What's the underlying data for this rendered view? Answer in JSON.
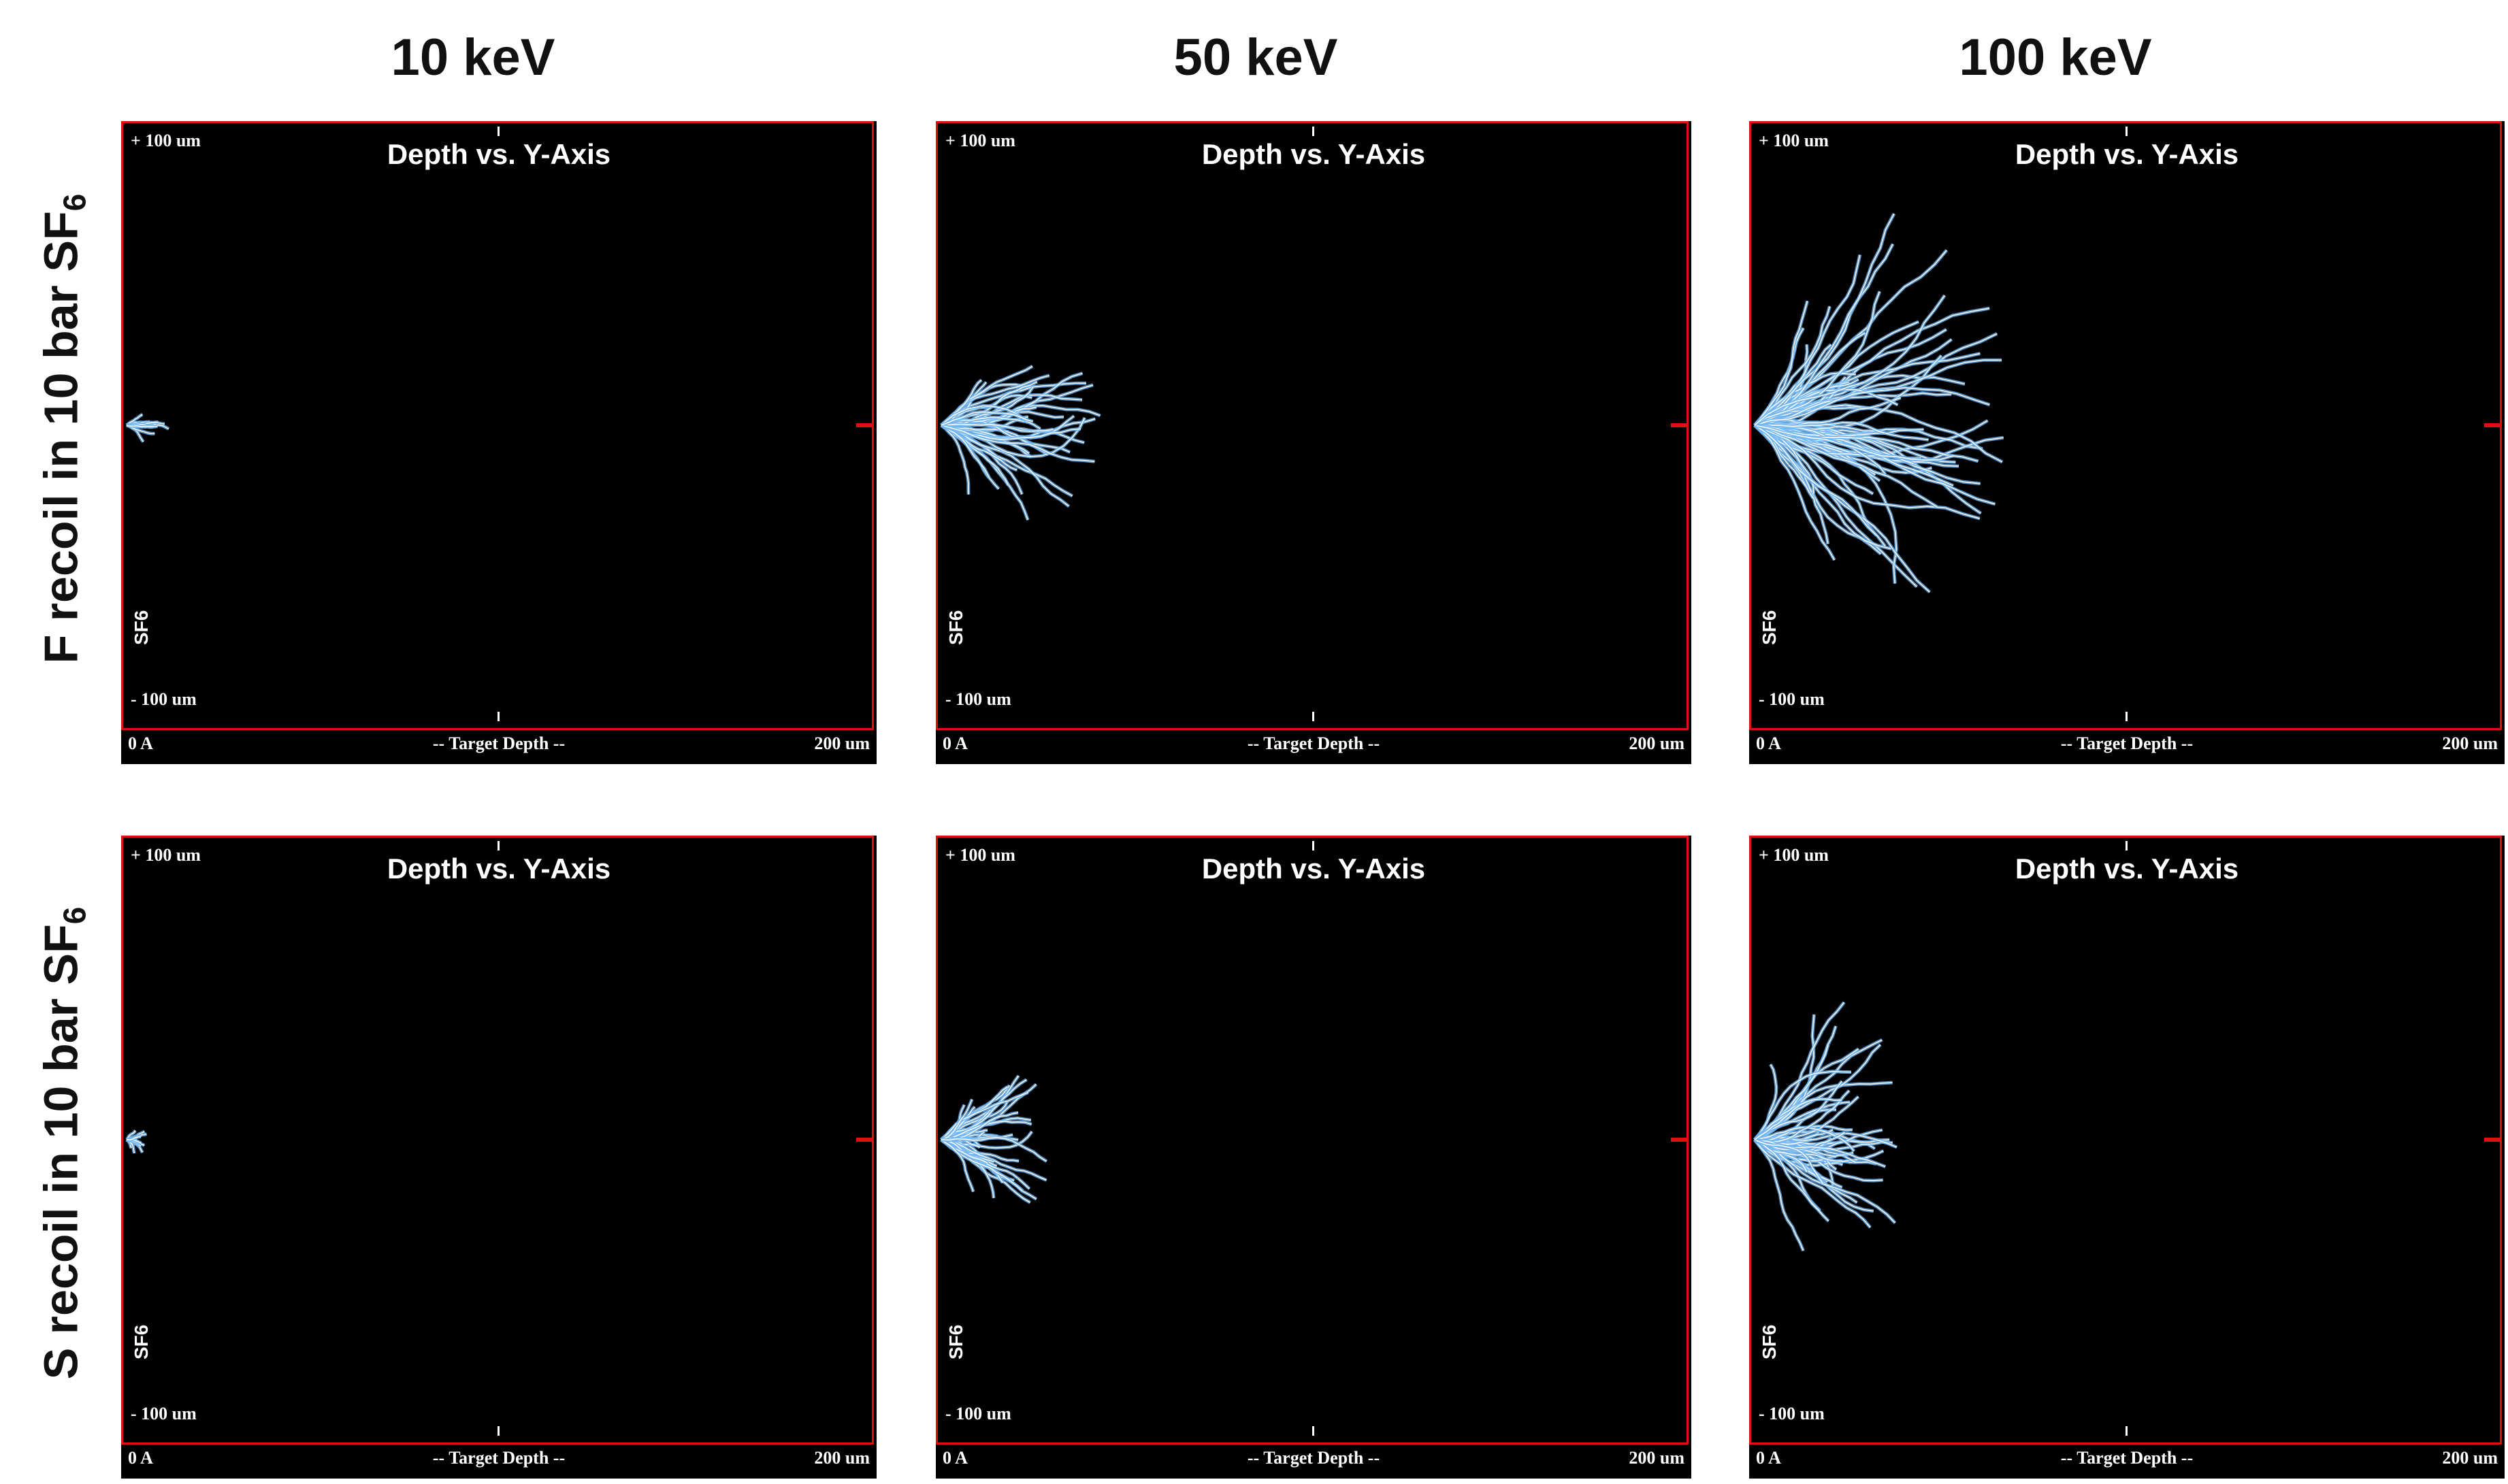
{
  "column_headers": [
    "10 keV",
    "50 keV",
    "100 keV"
  ],
  "row_labels": [
    {
      "text": "F recoil in 10 bar SF",
      "sub": "6"
    },
    {
      "text": "S recoil in 10 bar SF",
      "sub": "6"
    }
  ],
  "panel": {
    "title": "Depth vs. Y-Axis",
    "y_top": "+ 100 um",
    "y_bottom": "- 100 um",
    "x_left": "0 A",
    "x_center": "-- Target Depth --",
    "x_right": "200 um",
    "gas": "SF6"
  },
  "colors": {
    "background": "#000000",
    "border": "#e01010",
    "track_core": "#ffffff",
    "track_edge": "#6fb4f0"
  },
  "panels": [
    {
      "row": 0,
      "col": 0,
      "recoil": "F",
      "energy": "10 keV",
      "reach_um": 12,
      "spread_um": 6,
      "density": 14
    },
    {
      "row": 0,
      "col": 1,
      "recoil": "F",
      "energy": "50 keV",
      "reach_um": 45,
      "spread_um": 32,
      "density": 40
    },
    {
      "row": 0,
      "col": 2,
      "recoil": "F",
      "energy": "100 keV",
      "reach_um": 72,
      "spread_um": 55,
      "density": 70
    },
    {
      "row": 1,
      "col": 0,
      "recoil": "S",
      "energy": "10 keV",
      "reach_um": 6,
      "spread_um": 4,
      "density": 12
    },
    {
      "row": 1,
      "col": 1,
      "recoil": "S",
      "energy": "50 keV",
      "reach_um": 31,
      "spread_um": 23,
      "density": 38
    },
    {
      "row": 1,
      "col": 2,
      "recoil": "S",
      "energy": "100 keV",
      "reach_um": 45,
      "spread_um": 38,
      "density": 55
    }
  ]
}
